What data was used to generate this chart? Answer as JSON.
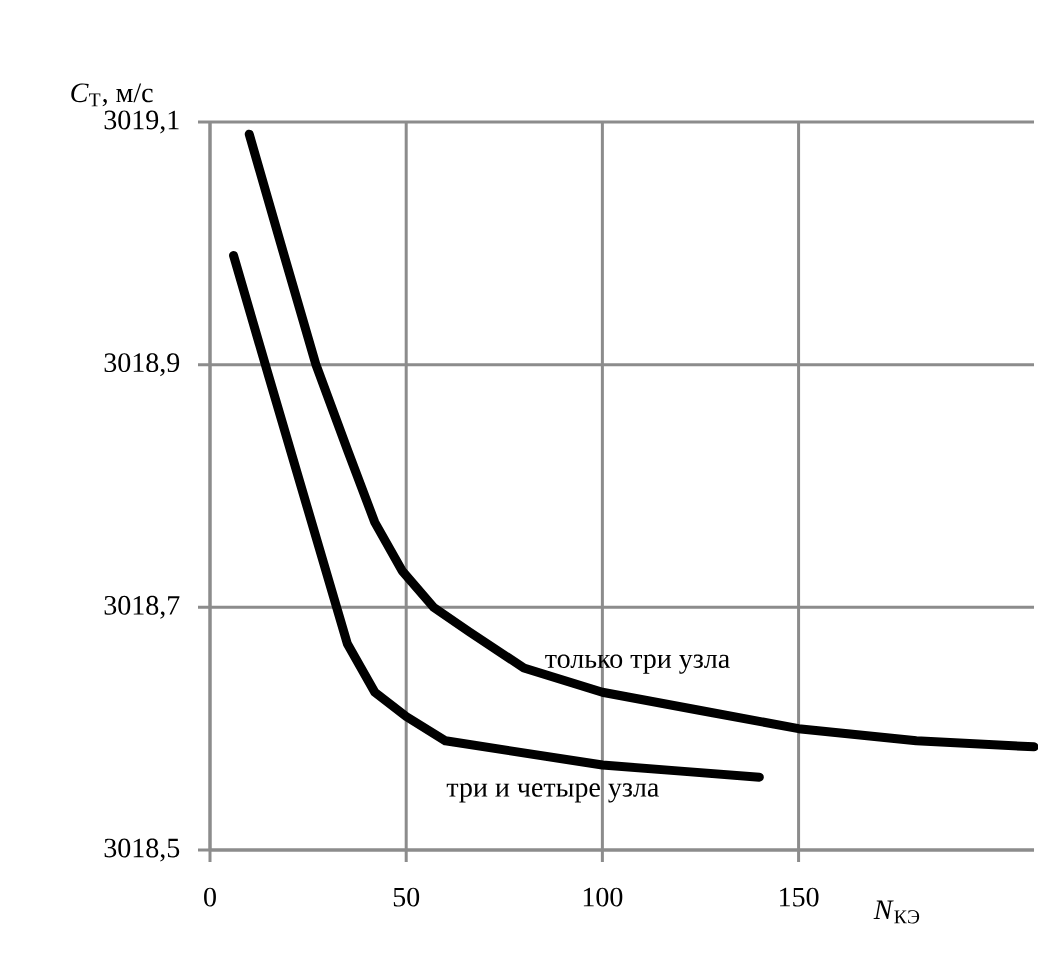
{
  "chart_data": {
    "type": "line",
    "xlabel": "*N*$_{КЭ}$",
    "ylabel": "*C*$_{T}$, м/с",
    "xlim": [
      0,
      210
    ],
    "xticks": [
      0,
      50,
      100,
      150
    ],
    "ylim": [
      3018.5,
      3019.1
    ],
    "yticks": [
      {
        "value": 3018.5,
        "label": "3018,5"
      },
      {
        "value": 3018.7,
        "label": "3018,7"
      },
      {
        "value": 3018.9,
        "label": "3018,9"
      },
      {
        "value": 3019.1,
        "label": "3019,1"
      }
    ],
    "grid": true,
    "marker": "none",
    "line_style": "solid",
    "series": [
      {
        "name": "только три узла",
        "color": "#000000",
        "x": [
          10,
          18,
          27,
          35,
          42,
          49,
          57,
          66,
          80,
          100,
          125,
          150,
          180,
          210
        ],
        "values": [
          3019.09,
          3019.0,
          3018.9,
          3018.83,
          3018.77,
          3018.73,
          3018.7,
          3018.68,
          3018.65,
          3018.63,
          3018.615,
          3018.6,
          3018.59,
          3018.585
        ]
      },
      {
        "name": "три и четыре узла",
        "color": "#000000",
        "x": [
          6,
          15,
          25,
          35,
          42,
          50,
          60,
          80,
          100,
          120,
          140
        ],
        "values": [
          3018.99,
          3018.89,
          3018.78,
          3018.67,
          3018.63,
          3018.61,
          3018.59,
          3018.58,
          3018.57,
          3018.565,
          3018.56
        ]
      }
    ]
  }
}
